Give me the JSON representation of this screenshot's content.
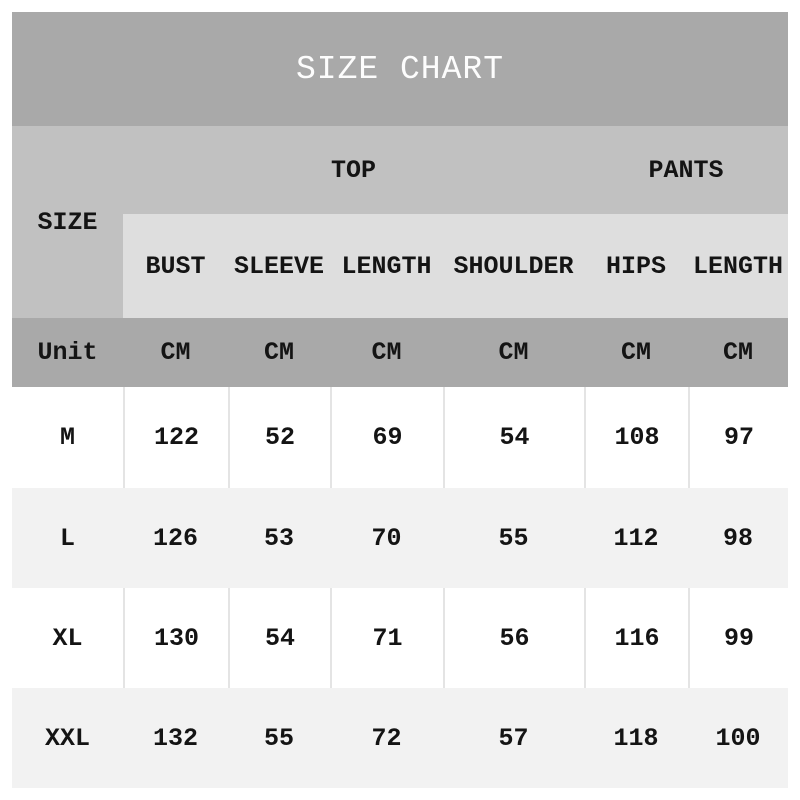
{
  "title": "SIZE CHART",
  "chart_data": {
    "type": "table",
    "title": "SIZE CHART",
    "row_header_label": "SIZE",
    "column_groups": [
      {
        "label": "TOP",
        "span": 4
      },
      {
        "label": "PANTS",
        "span": 2
      }
    ],
    "columns": [
      "BUST",
      "SLEEVE",
      "LENGTH",
      "SHOULDER",
      "HIPS",
      "LENGTH"
    ],
    "unit_label": "Unit",
    "units": [
      "CM",
      "CM",
      "CM",
      "CM",
      "CM",
      "CM"
    ],
    "rows": [
      {
        "size": "M",
        "values": [
          122,
          52,
          69,
          54,
          108,
          97
        ]
      },
      {
        "size": "L",
        "values": [
          126,
          53,
          70,
          55,
          112,
          98
        ]
      },
      {
        "size": "XL",
        "values": [
          130,
          54,
          71,
          56,
          116,
          99
        ]
      },
      {
        "size": "XXL",
        "values": [
          132,
          55,
          72,
          57,
          118,
          100
        ]
      }
    ]
  },
  "colors": {
    "title_bar_bg": "#a9a9a9",
    "header_bg": "#c1c1c1",
    "subheader_bg": "#dedede",
    "unit_row_bg": "#a9a9a9",
    "row_white_bg": "#ffffff",
    "row_shade_bg": "#f2f2f2",
    "title_text": "#fdfdfd",
    "body_text": "#141414"
  }
}
